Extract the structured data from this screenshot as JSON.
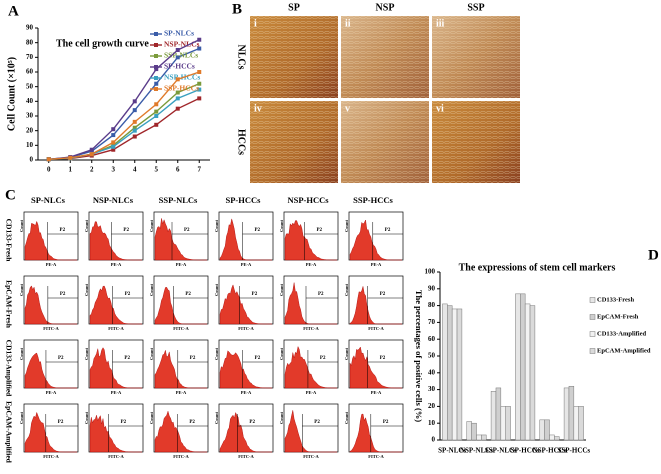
{
  "panel_labels": [
    "A",
    "B",
    "C",
    "D"
  ],
  "chart_data": [
    {
      "type": "line",
      "title": "The cell growth curve",
      "y_label": "Cell Count (×10⁵)",
      "x": [
        0,
        1,
        2,
        3,
        4,
        5,
        6,
        7
      ],
      "xticks": [
        0,
        1,
        2,
        3,
        4,
        5,
        6,
        7
      ],
      "xlim": [
        -0.5,
        7.5
      ],
      "ylim": [
        0,
        90
      ],
      "yticks": [
        0,
        10,
        20,
        30,
        40,
        50,
        60,
        70,
        80,
        90
      ],
      "series": [
        {
          "name": "SP-NLCs",
          "color": "#3a5ca8",
          "values": [
            0.5,
            1.8,
            6,
            17,
            34,
            52,
            70,
            76
          ]
        },
        {
          "name": "NSP-NLCs",
          "color": "#a0262a",
          "values": [
            0.5,
            1,
            3,
            7,
            16,
            24,
            35,
            42
          ]
        },
        {
          "name": "SSP-NLCs",
          "color": "#7a9a3a",
          "values": [
            0.5,
            1.2,
            4,
            10,
            22,
            33,
            46,
            52
          ]
        },
        {
          "name": "SP-HCCs",
          "color": "#5a3c8a",
          "values": [
            0.5,
            2,
            7,
            21,
            40,
            62,
            75,
            82
          ]
        },
        {
          "name": "NSP-HCCs",
          "color": "#3aa0c0",
          "values": [
            0.5,
            1.2,
            4,
            9,
            20,
            30,
            42,
            48
          ]
        },
        {
          "name": "SSP-HCCs",
          "color": "#e07a2a",
          "values": [
            0.5,
            1.5,
            4,
            12,
            26,
            38,
            55,
            60
          ]
        }
      ]
    },
    {
      "type": "bar",
      "title": "The expressions of stem cell markers",
      "y_label": "The percentages of positive cells (%)",
      "categories": [
        "SP-NLCs",
        "NSP-NLCs",
        "SSP-NLCs",
        "SP-HCCs",
        "NSP-HCCs",
        "SSP-HCCs"
      ],
      "ylim": [
        0,
        100
      ],
      "yticks": [
        0,
        10,
        20,
        30,
        40,
        50,
        60,
        70,
        80,
        90,
        100
      ],
      "series": [
        {
          "name": "CD133-Fresh",
          "color": "#e6e6e6",
          "values": [
            81,
            11,
            29,
            87,
            12,
            31
          ]
        },
        {
          "name": "EpCAM-Fresh",
          "color": "#cfcfcf",
          "values": [
            80,
            10,
            31,
            87,
            12,
            32
          ]
        },
        {
          "name": "CD133-Amplified",
          "color": "#f2f2f2",
          "values": [
            78,
            3,
            20,
            81,
            3,
            20
          ]
        },
        {
          "name": "EpCAM-Amplified",
          "color": "#dadada",
          "values": [
            78,
            3,
            20,
            80,
            2,
            20
          ]
        }
      ]
    }
  ],
  "micrographs": {
    "columns": [
      "SP",
      "NSP",
      "SSP"
    ],
    "rows": [
      "NLCs",
      "HCCs"
    ],
    "image_labels": [
      "i",
      "ii",
      "iii",
      "iv",
      "v",
      "vi"
    ]
  },
  "flow_cytometry": {
    "columns": [
      "SP-NLCs",
      "NSP-NLCs",
      "SSP-NLCs",
      "SP-HCCs",
      "NSP-HCCs",
      "SSP-HCCs"
    ],
    "rows": [
      "CD133-Fresh",
      "EpCAM-Fresh",
      "CD133-Amplified",
      "EpCAM-Amplified"
    ],
    "x_axis_labels": [
      "PE-A",
      "FITC-A",
      "PE-A",
      "FITC-A"
    ],
    "y_axis_label": "Count",
    "gate_label": "P2"
  }
}
